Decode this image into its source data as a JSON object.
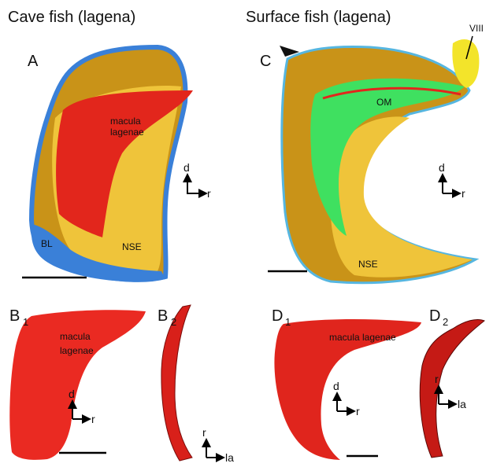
{
  "columns": [
    {
      "title": "Cave fish (lagena)"
    },
    {
      "title": "Surface fish (lagena)"
    }
  ],
  "panels": [
    {
      "label": "A",
      "annotations": [
        "macula",
        "lagenae",
        "NSE",
        "BL"
      ],
      "orientation": [
        "d",
        "r"
      ]
    },
    {
      "label": "B",
      "subscript": "1",
      "annotations": [
        "macula",
        "lagenae"
      ],
      "orientation": [
        "d",
        "r"
      ]
    },
    {
      "label": "B",
      "subscript": "2",
      "orientation": [
        "r",
        "la"
      ]
    },
    {
      "label": "C",
      "annotations": [
        "OM",
        "NSE",
        "VIII"
      ],
      "orientation": [
        "d",
        "r"
      ]
    },
    {
      "label": "D",
      "subscript": "1",
      "annotations": [
        "macula lagenae"
      ],
      "orientation": [
        "d",
        "r"
      ]
    },
    {
      "label": "D",
      "subscript": "2",
      "orientation": [
        "r",
        "la"
      ]
    }
  ]
}
